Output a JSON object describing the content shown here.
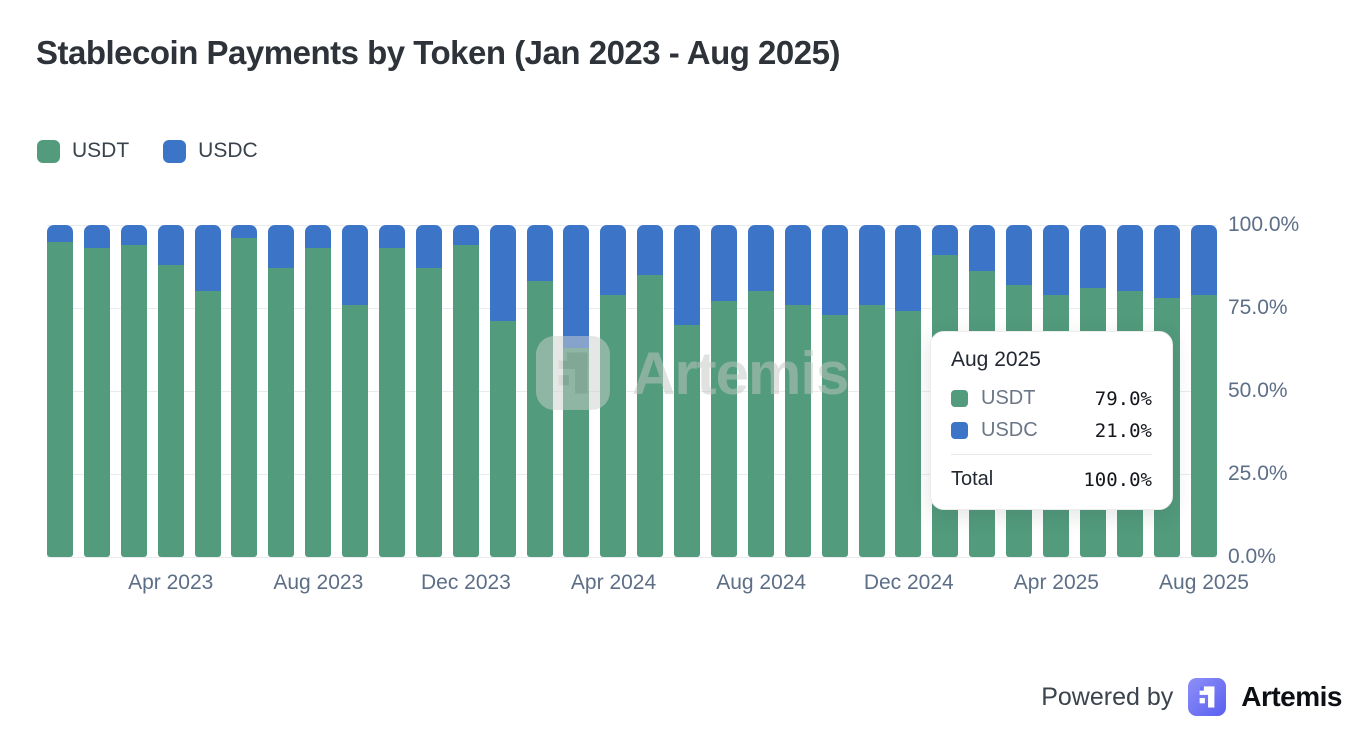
{
  "title": "Stablecoin Payments by Token (Jan 2023 - Aug 2025)",
  "legend": [
    {
      "label": "USDT",
      "color": "#529b7c"
    },
    {
      "label": "USDC",
      "color": "#3c75c8"
    }
  ],
  "chart_data": {
    "type": "bar",
    "stacked": true,
    "unit": "percent",
    "title": "Stablecoin Payments by Token (Jan 2023 - Aug 2025)",
    "x": [
      "Jan 2023",
      "Feb 2023",
      "Mar 2023",
      "Apr 2023",
      "May 2023",
      "Jun 2023",
      "Jul 2023",
      "Aug 2023",
      "Sep 2023",
      "Oct 2023",
      "Nov 2023",
      "Dec 2023",
      "Jan 2024",
      "Feb 2024",
      "Mar 2024",
      "Apr 2024",
      "May 2024",
      "Jun 2024",
      "Jul 2024",
      "Aug 2024",
      "Sep 2024",
      "Oct 2024",
      "Nov 2024",
      "Dec 2024",
      "Jan 2025",
      "Feb 2025",
      "Mar 2025",
      "Apr 2025",
      "May 2025",
      "Jun 2025",
      "Jul 2025",
      "Aug 2025"
    ],
    "series": [
      {
        "name": "USDT",
        "color": "#529b7c",
        "values": [
          95,
          93,
          94,
          88,
          80,
          96,
          87,
          93,
          76,
          93,
          87,
          94,
          71,
          83,
          63,
          79,
          85,
          70,
          77,
          80,
          76,
          73,
          76,
          74,
          91,
          86,
          82,
          79,
          81,
          80,
          78,
          79
        ]
      },
      {
        "name": "USDC",
        "color": "#3c75c8",
        "values": [
          5,
          7,
          6,
          12,
          20,
          4,
          13,
          7,
          24,
          7,
          13,
          6,
          29,
          17,
          37,
          21,
          15,
          30,
          23,
          20,
          24,
          27,
          24,
          26,
          9,
          14,
          18,
          21,
          19,
          20,
          22,
          21
        ]
      }
    ],
    "ylim": [
      0,
      100
    ],
    "y_tick_labels": [
      "100.0%",
      "75.0%",
      "50.0%",
      "25.0%",
      "0.0%"
    ],
    "x_tick_labels": [
      "Apr 2023",
      "Aug 2023",
      "Dec 2023",
      "Apr 2024",
      "Aug 2024",
      "Dec 2024",
      "Apr 2025",
      "Aug 2025"
    ],
    "grid": true,
    "legend_position": "top-left"
  },
  "tooltip": {
    "title": "Aug 2025",
    "rows": [
      {
        "label": "USDT",
        "value": "79.0%",
        "color": "#529b7c"
      },
      {
        "label": "USDC",
        "value": "21.0%",
        "color": "#3c75c8"
      }
    ],
    "total_label": "Total",
    "total_value": "100.0%"
  },
  "watermark": {
    "text": "Artemis"
  },
  "footer": {
    "powered_by": "Powered by",
    "brand": "Artemis",
    "brand_color": "#6e72f3"
  }
}
